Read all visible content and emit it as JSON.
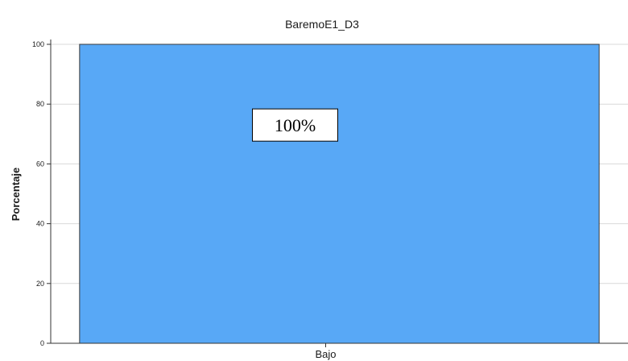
{
  "colors": {
    "bar_fill": "#58a8f6",
    "bar_stroke": "#3a3a3a",
    "grid": "#d9d9d9",
    "axis": "#333333",
    "label_box_fill": "#ffffff",
    "label_box_stroke": "#000000"
  },
  "chart_data": {
    "type": "bar",
    "title": "BaremoE1_D3",
    "xlabel": "",
    "ylabel": "Porcentaje",
    "categories": [
      "Bajo"
    ],
    "values": [
      100
    ],
    "data_labels": [
      "100%"
    ],
    "ylim": [
      0,
      100
    ],
    "yticks": [
      0,
      20,
      40,
      60,
      80,
      100
    ],
    "ytick_labels": [
      "0",
      "20",
      "40",
      "60",
      "80",
      "100"
    ],
    "grid": true,
    "legend": "none"
  }
}
